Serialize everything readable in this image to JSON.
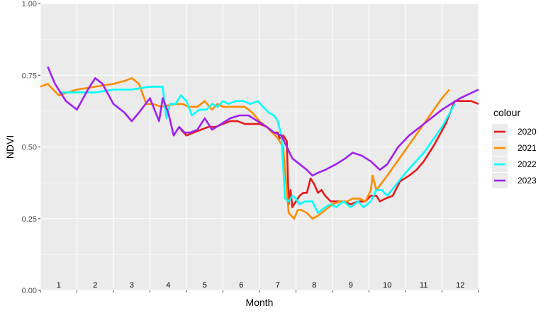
{
  "chart_data": {
    "type": "line",
    "xlabel": "Month",
    "ylabel": "NDVI",
    "ylim": [
      0,
      1
    ],
    "y_ticks": [
      "0.00",
      "0.25",
      "0.50",
      "0.75",
      "1.00"
    ],
    "xlim": [
      0.5,
      12.5
    ],
    "month_labels": [
      "1",
      "2",
      "3",
      "4",
      "5",
      "6",
      "7",
      "8",
      "9",
      "10",
      "11",
      "12"
    ],
    "grid": true,
    "legend": {
      "title": "colour",
      "position": "right"
    },
    "series": [
      {
        "name": "2020",
        "color": "#e41a1c",
        "x": [
          4.35,
          4.5,
          4.7,
          4.9,
          5.1,
          5.3,
          5.5,
          5.7,
          5.9,
          6.1,
          6.3,
          6.5,
          6.7,
          6.85,
          7.0,
          7.05,
          7.15,
          7.25,
          7.3,
          7.35,
          7.4,
          7.5,
          7.6,
          7.7,
          7.8,
          7.9,
          8.0,
          8.1,
          8.2,
          8.3,
          8.45,
          8.6,
          8.8,
          9.0,
          9.2,
          9.4,
          9.55,
          9.7,
          9.8,
          9.95,
          10.15,
          10.35,
          10.6,
          10.8,
          11.0,
          11.3,
          11.6,
          11.85,
          12.1,
          12.3,
          12.5
        ],
        "y": [
          0.56,
          0.54,
          0.55,
          0.56,
          0.57,
          0.57,
          0.58,
          0.59,
          0.59,
          0.58,
          0.58,
          0.58,
          0.57,
          0.55,
          0.55,
          0.53,
          0.54,
          0.52,
          0.3,
          0.35,
          0.29,
          0.31,
          0.33,
          0.34,
          0.34,
          0.39,
          0.37,
          0.34,
          0.35,
          0.33,
          0.31,
          0.31,
          0.31,
          0.3,
          0.31,
          0.31,
          0.33,
          0.33,
          0.31,
          0.32,
          0.33,
          0.38,
          0.4,
          0.42,
          0.45,
          0.51,
          0.58,
          0.66,
          0.66,
          0.66,
          0.65
        ]
      },
      {
        "name": "2021",
        "color": "#ff8c00",
        "x": [
          0.5,
          0.7,
          1.0,
          1.5,
          2.0,
          2.5,
          2.8,
          3.0,
          3.2,
          3.4,
          3.6,
          3.8,
          4.2,
          4.4,
          4.55,
          4.8,
          5.0,
          5.2,
          5.35,
          5.5,
          5.7,
          5.9,
          6.1,
          6.3,
          6.5,
          6.7,
          6.85,
          7.0,
          7.15,
          7.3,
          7.45,
          7.55,
          7.65,
          7.8,
          7.95,
          8.1,
          8.3,
          8.5,
          8.7,
          8.9,
          9.05,
          9.25,
          9.4,
          9.55,
          9.6,
          9.7,
          10.0,
          10.5,
          11.0,
          11.5,
          11.7
        ],
        "y": [
          0.71,
          0.72,
          0.68,
          0.7,
          0.71,
          0.72,
          0.73,
          0.74,
          0.72,
          0.65,
          0.65,
          0.64,
          0.65,
          0.65,
          0.64,
          0.64,
          0.66,
          0.63,
          0.65,
          0.64,
          0.64,
          0.64,
          0.64,
          0.62,
          0.59,
          0.57,
          0.55,
          0.53,
          0.5,
          0.27,
          0.25,
          0.28,
          0.28,
          0.27,
          0.25,
          0.26,
          0.28,
          0.3,
          0.31,
          0.31,
          0.32,
          0.32,
          0.31,
          0.35,
          0.4,
          0.35,
          0.4,
          0.49,
          0.58,
          0.67,
          0.7
        ]
      },
      {
        "name": "2022",
        "color": "#00ffff",
        "x": [
          1.0,
          1.5,
          2.0,
          2.5,
          3.0,
          3.5,
          3.85,
          3.95,
          4.05,
          4.2,
          4.35,
          4.5,
          4.65,
          4.85,
          5.05,
          5.2,
          5.35,
          5.5,
          5.65,
          5.85,
          6.05,
          6.25,
          6.45,
          6.6,
          6.75,
          6.9,
          7.0,
          7.1,
          7.2,
          7.3,
          7.4,
          7.5,
          7.6,
          7.75,
          7.95,
          8.1,
          8.3,
          8.45,
          8.6,
          8.8,
          9.0,
          9.2,
          9.35,
          9.55,
          9.7,
          9.85,
          10.0,
          10.5,
          11.0,
          11.5,
          11.85
        ],
        "y": [
          0.69,
          0.69,
          0.69,
          0.7,
          0.7,
          0.71,
          0.71,
          0.6,
          0.65,
          0.65,
          0.68,
          0.66,
          0.61,
          0.63,
          0.63,
          0.65,
          0.64,
          0.66,
          0.65,
          0.66,
          0.66,
          0.65,
          0.66,
          0.64,
          0.62,
          0.61,
          0.59,
          0.54,
          0.32,
          0.31,
          0.33,
          0.32,
          0.3,
          0.31,
          0.31,
          0.27,
          0.29,
          0.3,
          0.29,
          0.31,
          0.29,
          0.31,
          0.29,
          0.31,
          0.35,
          0.35,
          0.33,
          0.41,
          0.48,
          0.57,
          0.65
        ]
      },
      {
        "name": "2023",
        "color": "#a020f0",
        "x": [
          0.7,
          0.9,
          1.2,
          1.5,
          1.8,
          2.0,
          2.2,
          2.5,
          2.8,
          3.0,
          3.2,
          3.5,
          3.75,
          3.85,
          4.0,
          4.15,
          4.3,
          4.45,
          4.6,
          4.8,
          5.0,
          5.2,
          5.45,
          5.7,
          5.95,
          6.2,
          6.45,
          6.7,
          6.9,
          7.1,
          7.25,
          7.4,
          7.6,
          7.8,
          7.95,
          8.1,
          8.3,
          8.6,
          8.85,
          9.05,
          9.3,
          9.55,
          9.8,
          10.0,
          10.3,
          10.6,
          11.0,
          11.5,
          12.0,
          12.5
        ],
        "y": [
          0.78,
          0.72,
          0.66,
          0.63,
          0.7,
          0.74,
          0.72,
          0.65,
          0.62,
          0.59,
          0.62,
          0.67,
          0.59,
          0.67,
          0.62,
          0.54,
          0.57,
          0.55,
          0.55,
          0.56,
          0.6,
          0.56,
          0.58,
          0.6,
          0.61,
          0.61,
          0.59,
          0.57,
          0.55,
          0.54,
          0.5,
          0.46,
          0.44,
          0.42,
          0.4,
          0.41,
          0.42,
          0.44,
          0.46,
          0.48,
          0.47,
          0.45,
          0.42,
          0.44,
          0.5,
          0.54,
          0.58,
          0.63,
          0.67,
          0.7
        ]
      }
    ]
  }
}
